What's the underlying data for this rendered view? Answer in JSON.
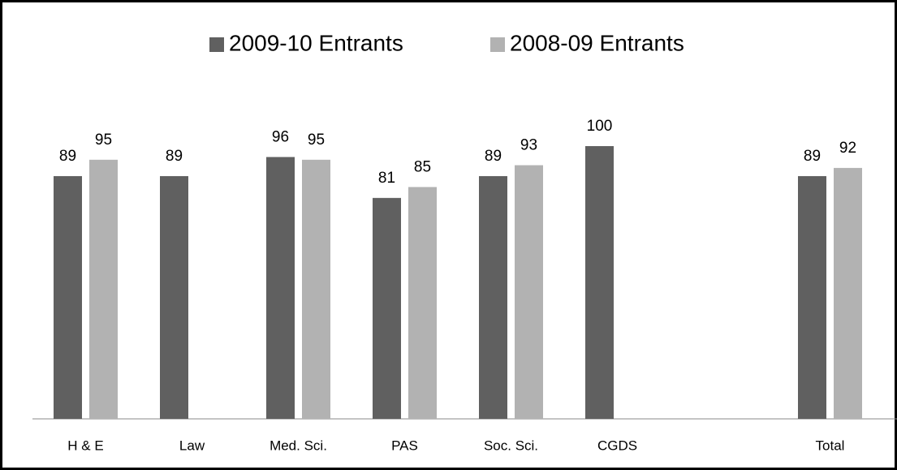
{
  "chart_data": {
    "type": "bar",
    "categories": [
      "H & E",
      "Law",
      "Med. Sci.",
      "PAS",
      "Soc. Sci.",
      "CGDS",
      null,
      "Total"
    ],
    "series": [
      {
        "name": "2009-10 Entrants",
        "color": "#606060",
        "values": [
          89,
          89,
          96,
          81,
          89,
          100,
          null,
          89
        ]
      },
      {
        "name": "2008-09 Entrants",
        "color": "#b2b2b2",
        "values": [
          95,
          null,
          95,
          85,
          93,
          null,
          null,
          92
        ]
      }
    ],
    "ylim": [
      0,
      100
    ],
    "grid": false,
    "legend": "top"
  }
}
